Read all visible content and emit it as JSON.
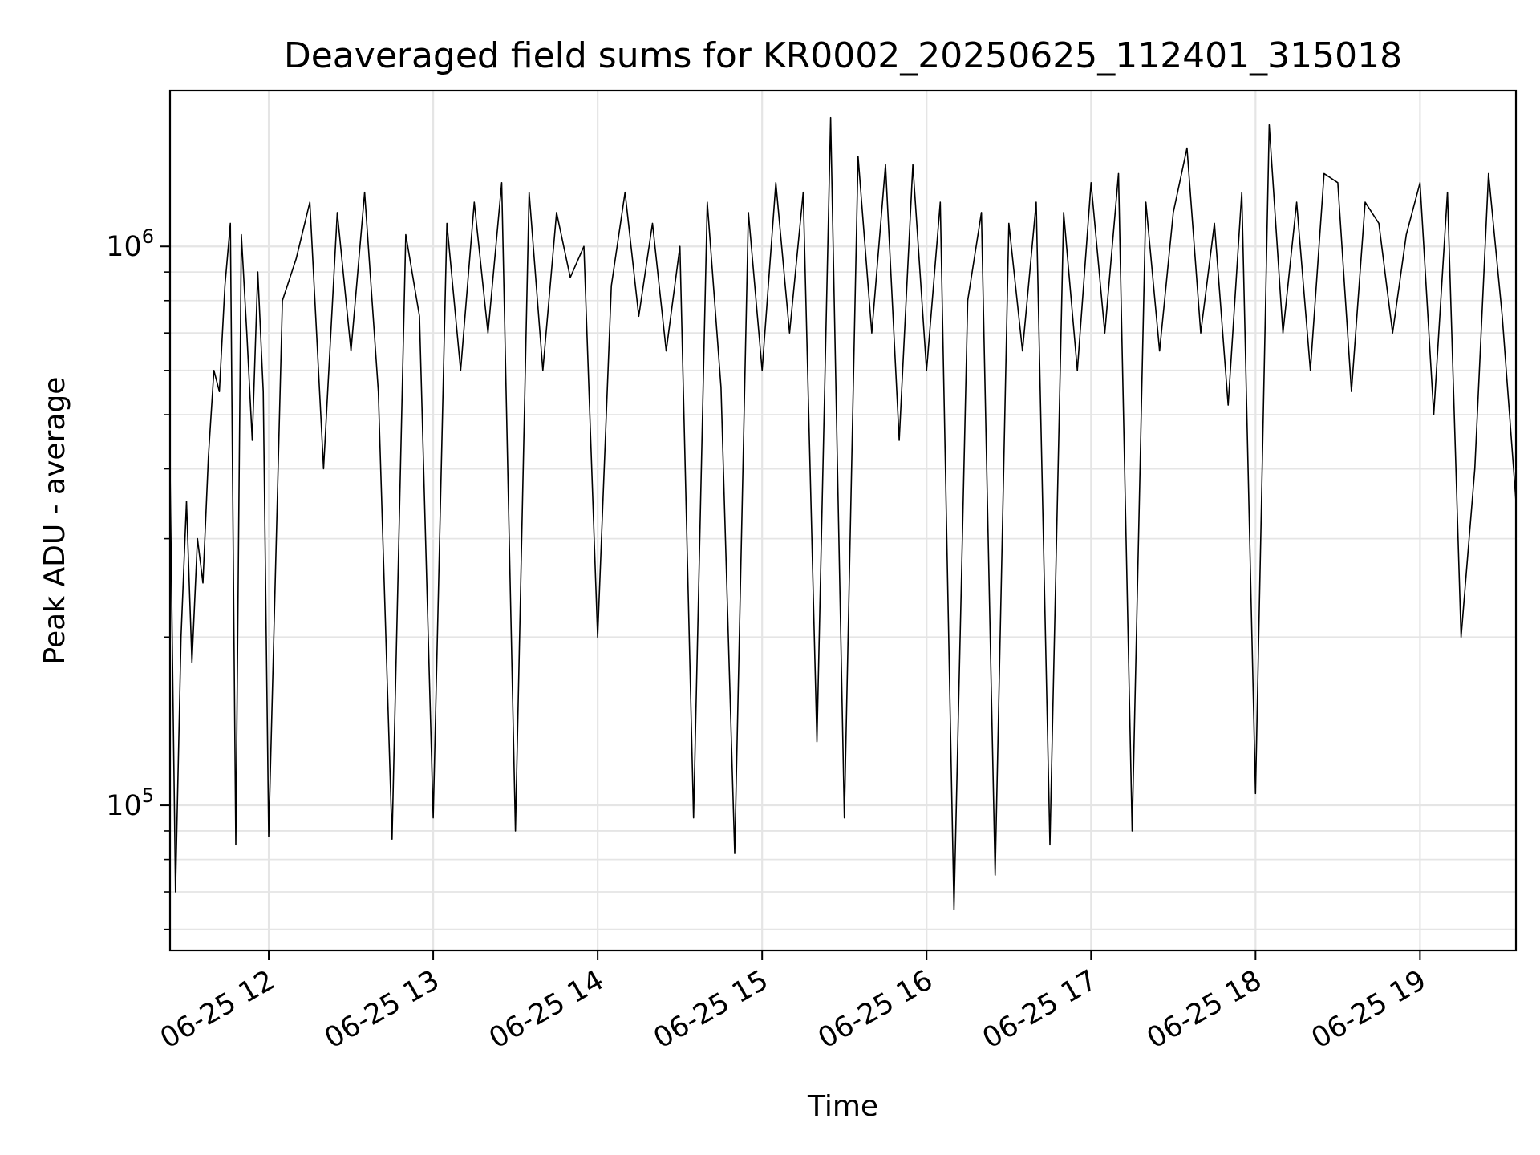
{
  "chart_data": {
    "type": "line",
    "title": "Deaveraged field sums for KR0002_20250625_112401_315018",
    "xlabel": "Time",
    "ylabel": "Peak ADU - average",
    "y_scale": "log",
    "grid": true,
    "legend": "none",
    "xlim": [
      "2025-06-25T11:24:00",
      "2025-06-25T19:35:00"
    ],
    "ylim": [
      55000,
      1900000
    ],
    "x_ticks": [
      "2025-06-25T12:00",
      "2025-06-25T13:00",
      "2025-06-25T14:00",
      "2025-06-25T15:00",
      "2025-06-25T16:00",
      "2025-06-25T17:00",
      "2025-06-25T18:00",
      "2025-06-25T19:00"
    ],
    "x_tick_labels": [
      "06-25 12",
      "06-25 13",
      "06-25 14",
      "06-25 15",
      "06-25 16",
      "06-25 17",
      "06-25 18",
      "06-25 19"
    ],
    "y_ticks": [
      100000,
      1000000
    ],
    "y_tick_labels": [
      {
        "base": "10",
        "exp": "5"
      },
      {
        "base": "10",
        "exp": "6"
      }
    ],
    "series": [
      {
        "color": "#000000",
        "x": [
          "2025-06-25T11:24",
          "2025-06-25T11:26",
          "2025-06-25T11:28",
          "2025-06-25T11:30",
          "2025-06-25T11:32",
          "2025-06-25T11:34",
          "2025-06-25T11:36",
          "2025-06-25T11:38",
          "2025-06-25T11:40",
          "2025-06-25T11:42",
          "2025-06-25T11:44",
          "2025-06-25T11:46",
          "2025-06-25T11:48",
          "2025-06-25T11:50",
          "2025-06-25T11:52",
          "2025-06-25T11:54",
          "2025-06-25T11:56",
          "2025-06-25T11:58",
          "2025-06-25T12:00",
          "2025-06-25T12:05",
          "2025-06-25T12:10",
          "2025-06-25T12:15",
          "2025-06-25T12:20",
          "2025-06-25T12:25",
          "2025-06-25T12:30",
          "2025-06-25T12:35",
          "2025-06-25T12:40",
          "2025-06-25T12:45",
          "2025-06-25T12:50",
          "2025-06-25T12:55",
          "2025-06-25T13:00",
          "2025-06-25T13:05",
          "2025-06-25T13:10",
          "2025-06-25T13:15",
          "2025-06-25T13:20",
          "2025-06-25T13:25",
          "2025-06-25T13:30",
          "2025-06-25T13:35",
          "2025-06-25T13:40",
          "2025-06-25T13:45",
          "2025-06-25T13:50",
          "2025-06-25T13:55",
          "2025-06-25T14:00",
          "2025-06-25T14:05",
          "2025-06-25T14:10",
          "2025-06-25T14:15",
          "2025-06-25T14:20",
          "2025-06-25T14:25",
          "2025-06-25T14:30",
          "2025-06-25T14:35",
          "2025-06-25T14:40",
          "2025-06-25T14:45",
          "2025-06-25T14:50",
          "2025-06-25T14:55",
          "2025-06-25T15:00",
          "2025-06-25T15:05",
          "2025-06-25T15:10",
          "2025-06-25T15:15",
          "2025-06-25T15:20",
          "2025-06-25T15:25",
          "2025-06-25T15:30",
          "2025-06-25T15:35",
          "2025-06-25T15:40",
          "2025-06-25T15:45",
          "2025-06-25T15:50",
          "2025-06-25T15:55",
          "2025-06-25T16:00",
          "2025-06-25T16:05",
          "2025-06-25T16:10",
          "2025-06-25T16:15",
          "2025-06-25T16:20",
          "2025-06-25T16:25",
          "2025-06-25T16:30",
          "2025-06-25T16:35",
          "2025-06-25T16:40",
          "2025-06-25T16:45",
          "2025-06-25T16:50",
          "2025-06-25T16:55",
          "2025-06-25T17:00",
          "2025-06-25T17:05",
          "2025-06-25T17:10",
          "2025-06-25T17:15",
          "2025-06-25T17:20",
          "2025-06-25T17:25",
          "2025-06-25T17:30",
          "2025-06-25T17:35",
          "2025-06-25T17:40",
          "2025-06-25T17:45",
          "2025-06-25T17:50",
          "2025-06-25T17:55",
          "2025-06-25T18:00",
          "2025-06-25T18:05",
          "2025-06-25T18:10",
          "2025-06-25T18:15",
          "2025-06-25T18:20",
          "2025-06-25T18:25",
          "2025-06-25T18:30",
          "2025-06-25T18:35",
          "2025-06-25T18:40",
          "2025-06-25T18:45",
          "2025-06-25T18:50",
          "2025-06-25T18:55",
          "2025-06-25T19:00",
          "2025-06-25T19:05",
          "2025-06-25T19:10",
          "2025-06-25T19:15",
          "2025-06-25T19:20",
          "2025-06-25T19:25",
          "2025-06-25T19:30",
          "2025-06-25T19:35"
        ],
        "y": [
          400000,
          70000,
          200000,
          350000,
          180000,
          300000,
          250000,
          420000,
          600000,
          550000,
          850000,
          1100000,
          85000,
          1050000,
          700000,
          450000,
          900000,
          550000,
          88000,
          800000,
          950000,
          1200000,
          400000,
          1150000,
          650000,
          1250000,
          550000,
          87000,
          1050000,
          750000,
          95000,
          1100000,
          600000,
          1200000,
          700000,
          1300000,
          90000,
          1250000,
          600000,
          1150000,
          880000,
          1000000,
          200000,
          850000,
          1250000,
          750000,
          1100000,
          650000,
          1000000,
          95000,
          1200000,
          560000,
          82000,
          1150000,
          600000,
          1300000,
          700000,
          1250000,
          130000,
          1700000,
          95000,
          1450000,
          700000,
          1400000,
          450000,
          1400000,
          600000,
          1200000,
          65000,
          800000,
          1150000,
          75000,
          1100000,
          650000,
          1200000,
          85000,
          1150000,
          600000,
          1300000,
          700000,
          1350000,
          90000,
          1200000,
          650000,
          1150000,
          1500000,
          700000,
          1100000,
          520000,
          1250000,
          105000,
          1650000,
          700000,
          1200000,
          600000,
          1350000,
          1300000,
          550000,
          1200000,
          1100000,
          700000,
          1050000,
          1300000,
          500000,
          1250000,
          200000,
          400000,
          1350000,
          750000,
          350000
        ]
      }
    ]
  }
}
